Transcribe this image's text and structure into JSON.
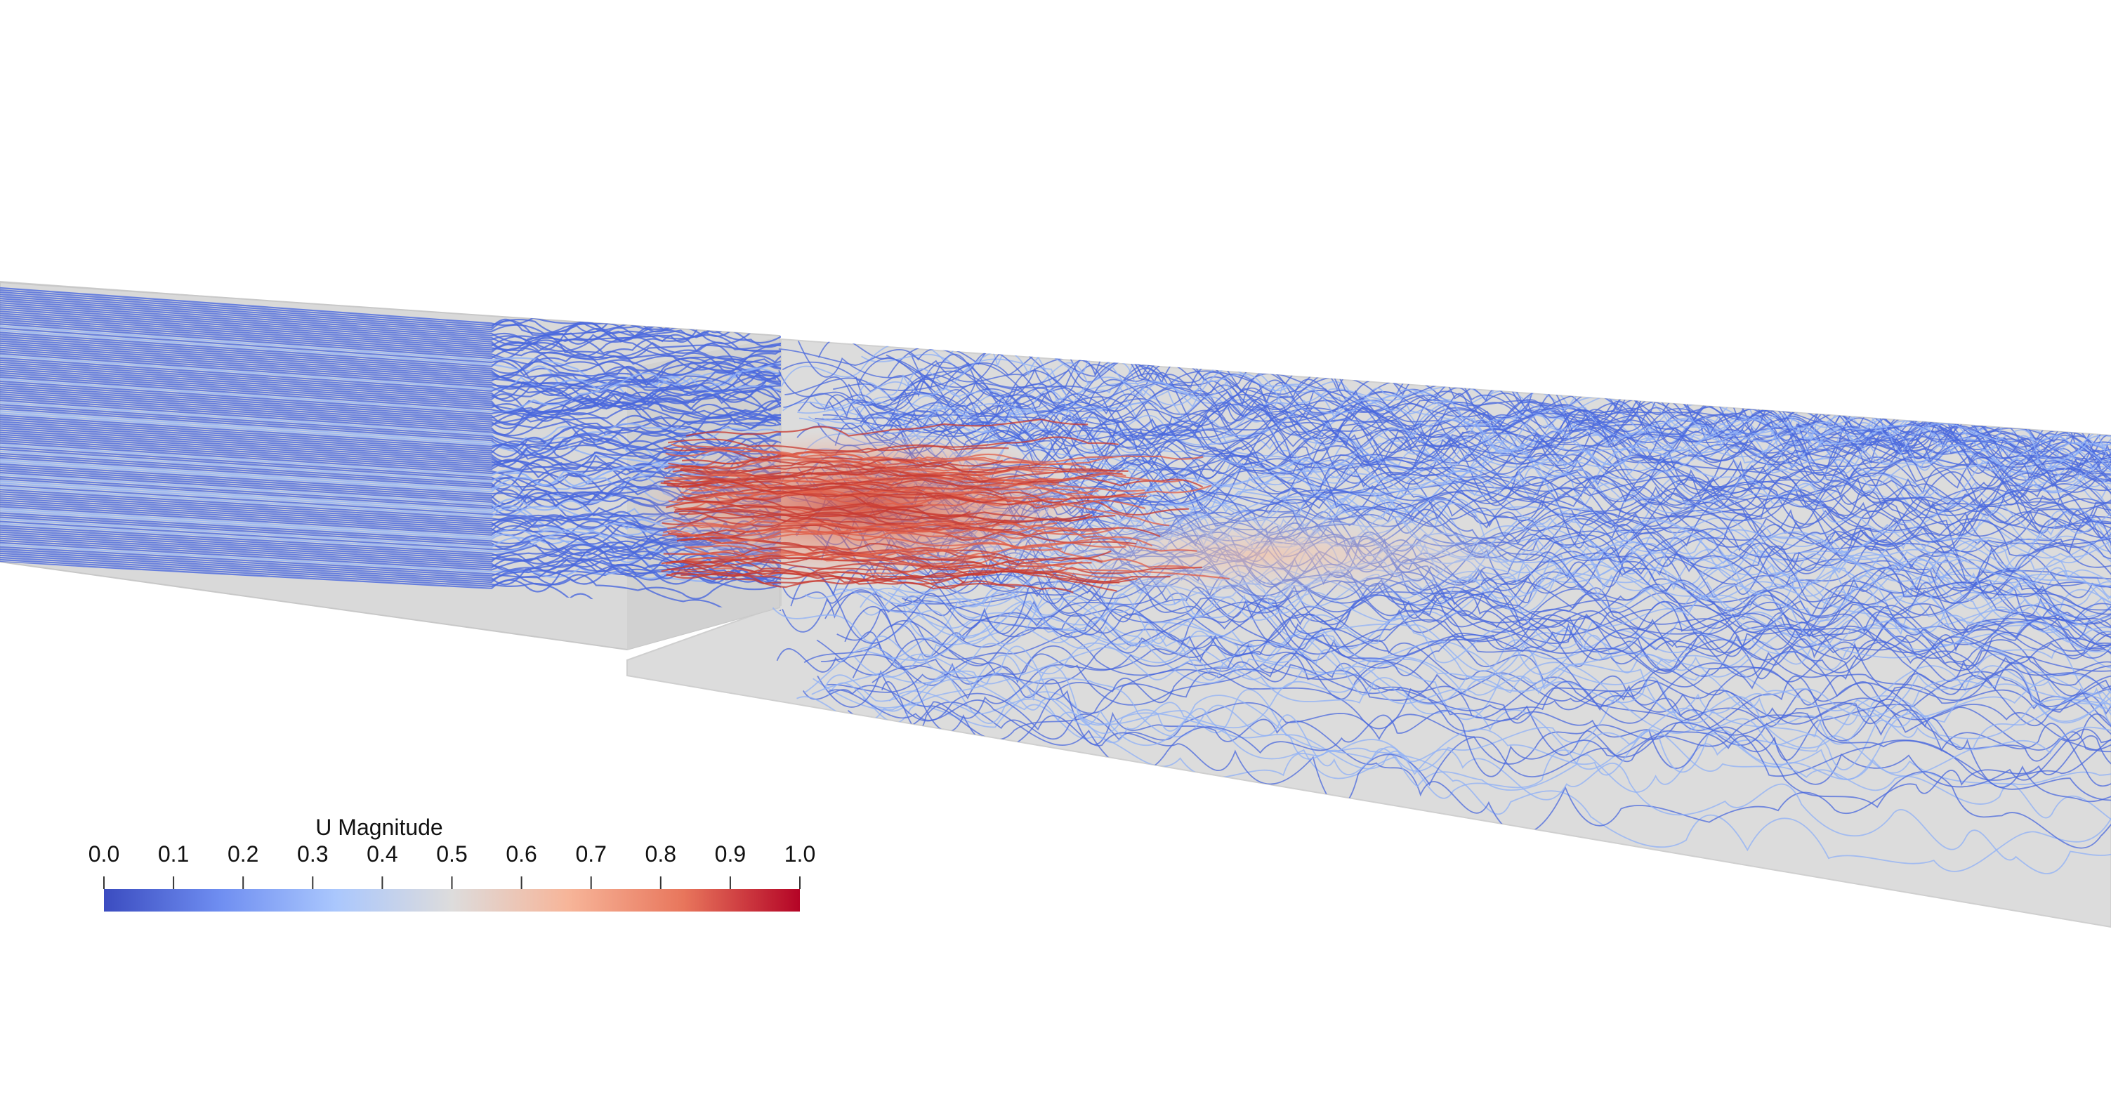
{
  "legend": {
    "title": "U Magnitude",
    "ticks": [
      "0.0",
      "0.1",
      "0.2",
      "0.3",
      "0.4",
      "0.5",
      "0.6",
      "0.7",
      "0.8",
      "0.9",
      "1.0"
    ],
    "range": [
      0.0,
      1.0
    ],
    "colormap": [
      "#3b4cc0",
      "#6f8ef1",
      "#aac7fd",
      "#dddcdc",
      "#f7b599",
      "#e8765c",
      "#b40426"
    ]
  },
  "scene": {
    "background": "#ffffff",
    "domain_color": "#dcdcdc",
    "domain_edge": "#c8c8c8",
    "colors": {
      "slow": "#4a68dd",
      "medium": "#8fb0f7",
      "fast": "#e05f4a",
      "fastest": "#c83a30"
    }
  }
}
